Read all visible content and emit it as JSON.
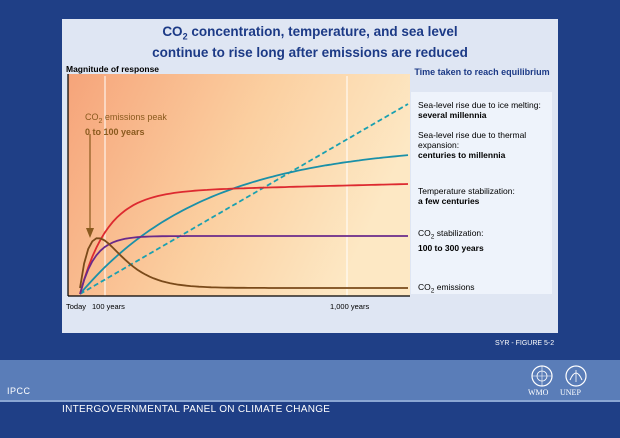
{
  "slide": {
    "title_line1_pre": "CO",
    "title_line1_sub": "2",
    "title_line1_post": " concentration, temperature, and sea level",
    "title_line2": "continue to rise long after emissions are reduced",
    "figure_label": "SYR - FIGURE 5-2",
    "footer_short": "IPCC",
    "footer_org": "INTERGOVERNMENTAL PANEL ON CLIMATE CHANGE",
    "logo_wmo": "WMO",
    "logo_unep": "UNEP"
  },
  "chart_data": {
    "type": "line",
    "ylabel": "Magnitude of response",
    "legend_title": "Time taken to reach equilibrium",
    "x_ticks": [
      "Today",
      "100 years",
      "1,000 years"
    ],
    "peak_label_pre": "CO",
    "peak_label_sub": "2",
    "peak_label_post": " emissions peak",
    "peak_label_line2": "0 to 100 years",
    "legend": [
      {
        "name": "Sea-level rise due to ice melting:",
        "detail": "several millennia",
        "color": "#1aa0a8"
      },
      {
        "name": "Sea-level rise due to thermal expansion:",
        "detail": "centuries to millennia",
        "color": "#1a8aa0"
      },
      {
        "name": "Temperature stabilization:",
        "detail": "a few centuries",
        "color": "#d6262d"
      },
      {
        "name_pre": "CO",
        "name_sub": "2",
        "name_post": " stabilization:",
        "detail": "100 to 300 years",
        "color": "#6a2a86"
      },
      {
        "name_pre": "CO",
        "name_sub": "2",
        "name_post": " emissions",
        "detail": "",
        "color": "#7a4a1a"
      }
    ],
    "colors": {
      "ice": "#1aa0b0",
      "thermal": "#1a90a8",
      "temperature": "#dd2a30",
      "co2_stab": "#6a2a8a",
      "co2_emissions": "#7a4a1a"
    }
  }
}
